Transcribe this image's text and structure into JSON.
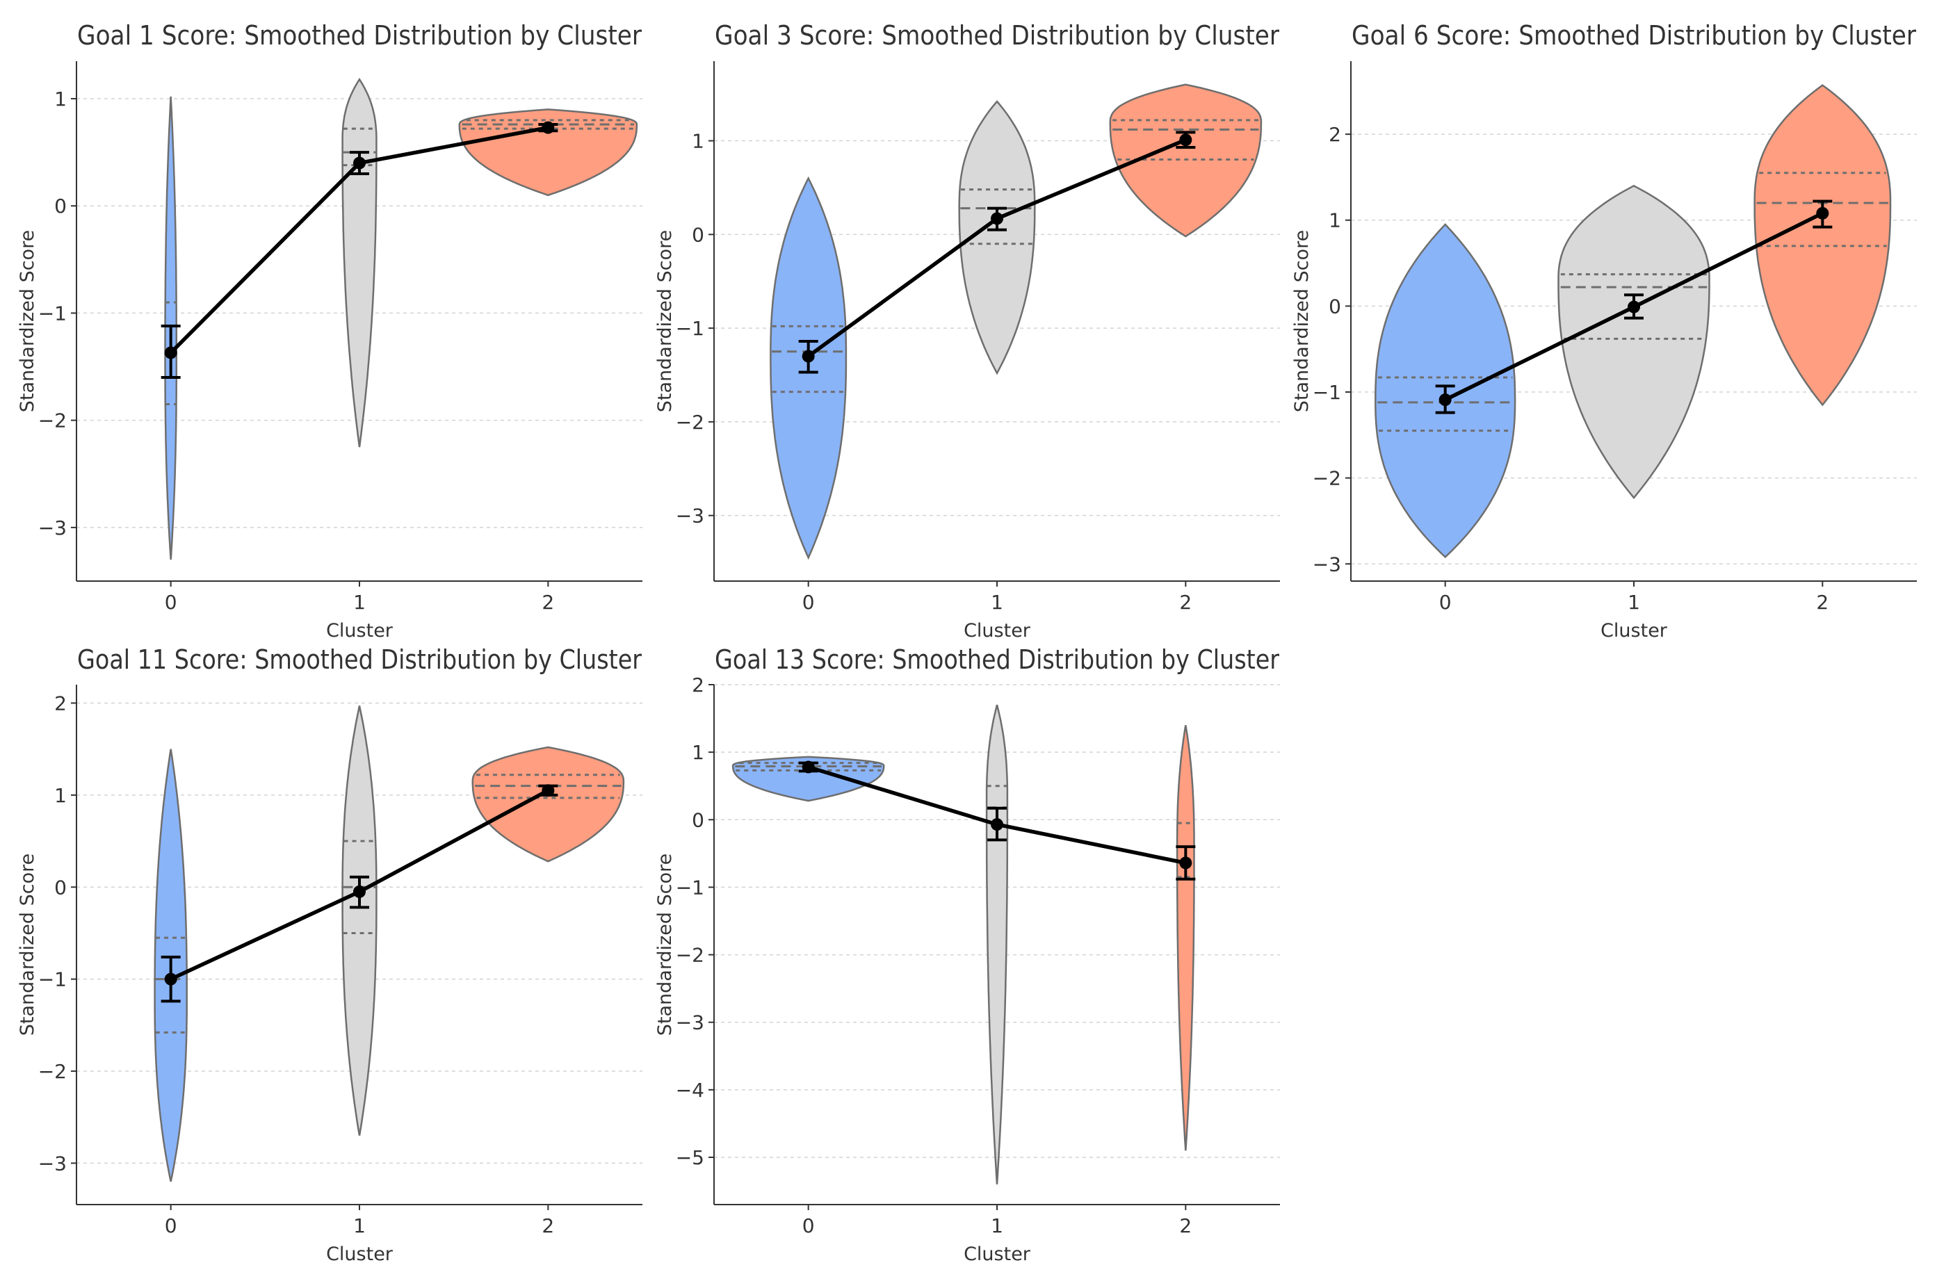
{
  "colors": {
    "cluster0": "#8AB4F8",
    "cluster1": "#D9D9D9",
    "cluster2": "#FF9E80",
    "outline": "#6E6E6E",
    "mean_line": "#000000",
    "grid": "#D3D3D3"
  },
  "chart_data": [
    {
      "type": "violin",
      "title": "Goal 1 Score: Smoothed Distribution by Cluster",
      "xlabel": "Cluster",
      "ylabel": "Standardized Score",
      "categories": [
        "0",
        "1",
        "2"
      ],
      "yticks": [
        1,
        0,
        -1,
        -2,
        -3
      ],
      "ylim": [
        -3.5,
        1.35
      ],
      "violins": [
        {
          "cluster": "0",
          "min": -3.3,
          "max": 1.02,
          "peak": -1.4,
          "width": 0.03,
          "q1": -1.85,
          "median": -1.4,
          "q3": -0.9,
          "color": "cluster0"
        },
        {
          "cluster": "1",
          "min": -2.25,
          "max": 1.18,
          "peak": 0.6,
          "width": 0.09,
          "q1": 0.38,
          "median": 0.5,
          "q3": 0.72,
          "color": "cluster1"
        },
        {
          "cluster": "2",
          "min": 0.1,
          "max": 0.9,
          "peak": 0.76,
          "width": 0.47,
          "q1": 0.72,
          "median": 0.76,
          "q3": 0.8,
          "color": "cluster2"
        }
      ],
      "means": [
        -1.37,
        0.4,
        0.73
      ],
      "ci_low": [
        -1.6,
        0.3,
        0.7
      ],
      "ci_high": [
        -1.12,
        0.5,
        0.76
      ]
    },
    {
      "type": "violin",
      "title": "Goal 3 Score: Smoothed Distribution by Cluster",
      "xlabel": "Cluster",
      "ylabel": "Standardized Score",
      "categories": [
        "0",
        "1",
        "2"
      ],
      "yticks": [
        1,
        0,
        -1,
        -2,
        -3
      ],
      "ylim": [
        -3.7,
        1.85
      ],
      "violins": [
        {
          "cluster": "0",
          "min": -3.45,
          "max": 0.6,
          "peak": -1.3,
          "width": 0.2,
          "q1": -1.68,
          "median": -1.25,
          "q3": -0.98,
          "color": "cluster0"
        },
        {
          "cluster": "1",
          "min": -1.48,
          "max": 1.42,
          "peak": 0.3,
          "width": 0.2,
          "q1": -0.1,
          "median": 0.28,
          "q3": 0.48,
          "color": "cluster1"
        },
        {
          "cluster": "2",
          "min": -0.02,
          "max": 1.6,
          "peak": 1.2,
          "width": 0.4,
          "q1": 0.8,
          "median": 1.12,
          "q3": 1.22,
          "color": "cluster2"
        }
      ],
      "means": [
        -1.3,
        0.17,
        1.01
      ],
      "ci_low": [
        -1.47,
        0.05,
        0.93
      ],
      "ci_high": [
        -1.14,
        0.28,
        1.09
      ]
    },
    {
      "type": "violin",
      "title": "Goal 6 Score: Smoothed Distribution by Cluster",
      "xlabel": "Cluster",
      "ylabel": "Standardized Score",
      "categories": [
        "0",
        "1",
        "2"
      ],
      "yticks": [
        2,
        1,
        0,
        -1,
        -2,
        -3
      ],
      "ylim": [
        -3.2,
        2.85
      ],
      "violins": [
        {
          "cluster": "0",
          "min": -2.92,
          "max": 0.95,
          "peak": -1.1,
          "width": 0.37,
          "q1": -1.45,
          "median": -1.12,
          "q3": -0.83,
          "color": "cluster0"
        },
        {
          "cluster": "1",
          "min": -2.23,
          "max": 1.4,
          "peak": 0.3,
          "width": 0.4,
          "q1": -0.38,
          "median": 0.22,
          "q3": 0.37,
          "color": "cluster1"
        },
        {
          "cluster": "2",
          "min": -1.15,
          "max": 2.57,
          "peak": 1.2,
          "width": 0.36,
          "q1": 0.7,
          "median": 1.2,
          "q3": 1.55,
          "color": "cluster2"
        }
      ],
      "means": [
        -1.09,
        -0.01,
        1.08
      ],
      "ci_low": [
        -1.24,
        -0.14,
        0.92
      ],
      "ci_high": [
        -0.93,
        0.13,
        1.22
      ]
    },
    {
      "type": "violin",
      "title": "Goal 11 Score: Smoothed Distribution by Cluster",
      "xlabel": "Cluster",
      "ylabel": "Standardized Score",
      "categories": [
        "0",
        "1",
        "2"
      ],
      "yticks": [
        2,
        1,
        0,
        -1,
        -2,
        -3
      ],
      "ylim": [
        -3.45,
        2.2
      ],
      "violins": [
        {
          "cluster": "0",
          "min": -3.2,
          "max": 1.5,
          "peak": -1.2,
          "width": 0.085,
          "q1": -1.58,
          "median": -1.0,
          "q3": -0.55,
          "color": "cluster0"
        },
        {
          "cluster": "1",
          "min": -2.7,
          "max": 1.97,
          "peak": -0.1,
          "width": 0.09,
          "q1": -0.5,
          "median": 0.0,
          "q3": 0.5,
          "color": "cluster1"
        },
        {
          "cluster": "2",
          "min": 0.28,
          "max": 1.52,
          "peak": 1.15,
          "width": 0.4,
          "q1": 0.97,
          "median": 1.1,
          "q3": 1.22,
          "color": "cluster2"
        }
      ],
      "means": [
        -1.0,
        -0.05,
        1.05
      ],
      "ci_low": [
        -1.24,
        -0.22,
        1.0
      ],
      "ci_high": [
        -0.76,
        0.11,
        1.1
      ]
    },
    {
      "type": "violin",
      "title": "Goal 13 Score: Smoothed Distribution by Cluster",
      "xlabel": "Cluster",
      "ylabel": "Standardized Score",
      "categories": [
        "0",
        "1",
        "2"
      ],
      "yticks": [
        2,
        1,
        0,
        -1,
        -2,
        -3,
        -4,
        -5
      ],
      "ylim": [
        -5.7,
        2.0
      ],
      "violins": [
        {
          "cluster": "0",
          "min": 0.28,
          "max": 0.93,
          "peak": 0.8,
          "width": 0.4,
          "q1": 0.73,
          "median": 0.79,
          "q3": 0.84,
          "color": "cluster0"
        },
        {
          "cluster": "1",
          "min": -5.4,
          "max": 1.7,
          "peak": 0.3,
          "width": 0.055,
          "q1": -0.3,
          "median": 0.18,
          "q3": 0.5,
          "color": "cluster1"
        },
        {
          "cluster": "2",
          "min": -4.9,
          "max": 1.4,
          "peak": -0.4,
          "width": 0.045,
          "q1": -0.85,
          "median": -0.4,
          "q3": -0.05,
          "color": "cluster2"
        }
      ],
      "means": [
        0.78,
        -0.07,
        -0.64
      ],
      "ci_low": [
        0.72,
        -0.3,
        -0.88
      ],
      "ci_high": [
        0.84,
        0.17,
        -0.4
      ]
    }
  ]
}
